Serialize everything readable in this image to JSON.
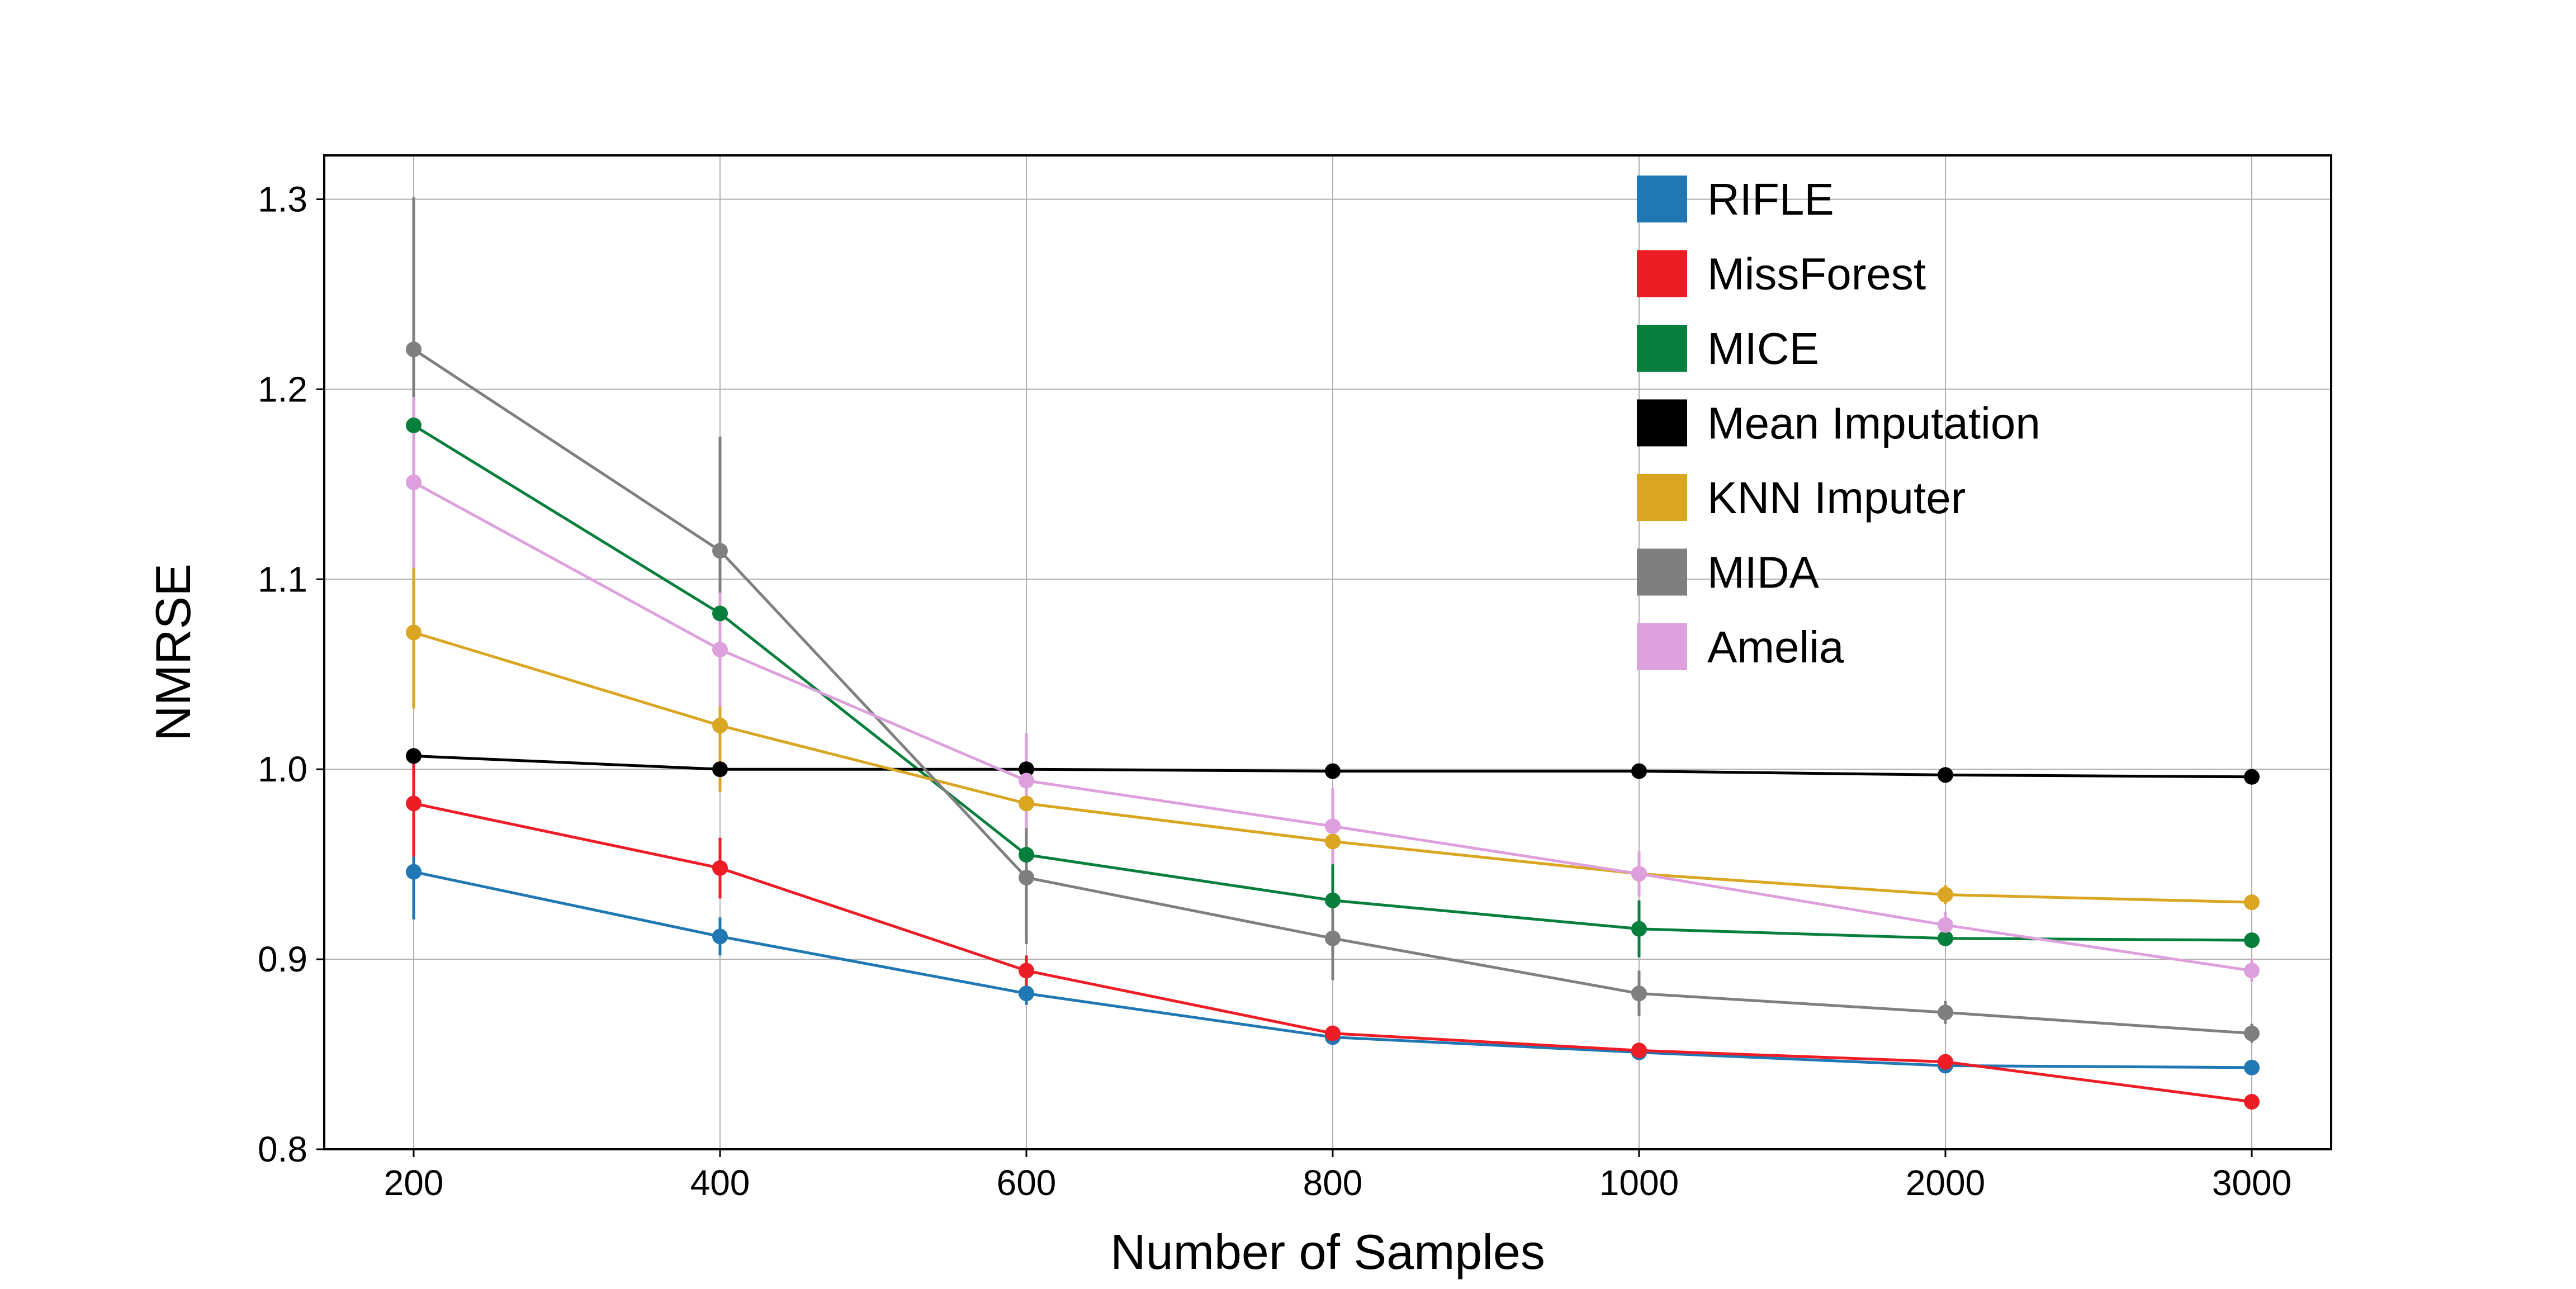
{
  "chart_data": {
    "type": "line",
    "title": "",
    "xlabel": "Number of Samples",
    "ylabel": "NMRSE",
    "categories": [
      "200",
      "400",
      "600",
      "800",
      "1000",
      "2000",
      "3000"
    ],
    "ylim": [
      0.8,
      1.325
    ],
    "yticks": [
      "0.8",
      "0.9",
      "1.0",
      "1.1",
      "1.2",
      "1.3"
    ],
    "grid": true,
    "legend_position": "top-right",
    "series": [
      {
        "name": "RIFLE",
        "color": "#1f77b4",
        "values": [
          0.946,
          0.912,
          0.882,
          0.859,
          0.851,
          0.844,
          0.843
        ],
        "errors": [
          0.025,
          0.01,
          0.006,
          0.004,
          0.003,
          0.003,
          0.002
        ]
      },
      {
        "name": "MissForest",
        "color": "#ee1c25",
        "values": [
          0.982,
          0.948,
          0.894,
          0.861,
          0.852,
          0.846,
          0.825
        ],
        "errors": [
          0.028,
          0.016,
          0.008,
          0.004,
          0.003,
          0.003,
          0.002
        ]
      },
      {
        "name": "MICE",
        "color": "#067f3c",
        "values": [
          1.181,
          1.082,
          0.955,
          0.931,
          0.916,
          0.911,
          0.91
        ],
        "errors": [
          0.015,
          0.015,
          0.012,
          0.02,
          0.015,
          0.004,
          0.003
        ]
      },
      {
        "name": "Mean Imputation",
        "color": "#000000",
        "values": [
          1.007,
          1.0,
          1.0,
          0.999,
          0.999,
          0.997,
          0.996
        ],
        "errors": [
          0.004,
          0.002,
          0.002,
          0.001,
          0.001,
          0.001,
          0.001
        ]
      },
      {
        "name": "KNN Imputer",
        "color": "#daa520",
        "values": [
          1.072,
          1.023,
          0.982,
          0.962,
          0.945,
          0.934,
          0.93
        ],
        "errors": [
          0.04,
          0.035,
          0.015,
          0.012,
          0.008,
          0.005,
          0.004
        ]
      },
      {
        "name": "MIDA",
        "color": "#7f7f7f",
        "values": [
          1.221,
          1.115,
          0.943,
          0.911,
          0.882,
          0.872,
          0.861
        ],
        "errors": [
          0.08,
          0.06,
          0.035,
          0.022,
          0.012,
          0.006,
          0.005
        ]
      },
      {
        "name": "Amelia",
        "color": "#dda0dd",
        "values": [
          1.151,
          1.063,
          0.994,
          0.97,
          0.945,
          0.918,
          0.894
        ],
        "errors": [
          0.045,
          0.03,
          0.025,
          0.02,
          0.012,
          0.007,
          0.006
        ]
      }
    ]
  }
}
